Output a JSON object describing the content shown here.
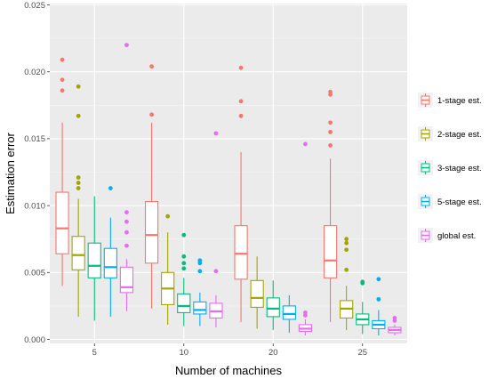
{
  "chart_data": {
    "type": "box",
    "xlabel": "Number of machines",
    "ylabel": "Estimation error",
    "ylim": [
      -0.0003,
      0.0251
    ],
    "yticks": [
      "0.000",
      "0.005",
      "0.010",
      "0.015",
      "0.020",
      "0.025"
    ],
    "ytick_values": [
      0,
      0.005,
      0.01,
      0.015,
      0.02,
      0.025
    ],
    "categories": [
      "5",
      "10",
      "20",
      "25"
    ],
    "legend_position": "right",
    "grid": true,
    "series": [
      {
        "name": "1-stage est.",
        "color": "#f8766d",
        "boxes": [
          {
            "min": 0.004,
            "q1": 0.0064,
            "median": 0.0083,
            "q3": 0.011,
            "max": 0.0162,
            "outliers": [
              0.0209,
              0.0194,
              0.0186
            ]
          },
          {
            "min": 0.0023,
            "q1": 0.0057,
            "median": 0.0078,
            "q3": 0.0103,
            "max": 0.0162,
            "outliers": [
              0.0204,
              0.0168
            ]
          },
          {
            "min": 0.0013,
            "q1": 0.0045,
            "median": 0.0064,
            "q3": 0.0085,
            "max": 0.014,
            "outliers": [
              0.0203,
              0.0178,
              0.0167
            ]
          },
          {
            "min": 0.0013,
            "q1": 0.0046,
            "median": 0.0059,
            "q3": 0.0085,
            "max": 0.0135,
            "outliers": [
              0.0185,
              0.0183,
              0.0162,
              0.0155,
              0.0145
            ]
          }
        ]
      },
      {
        "name": "2-stage est.",
        "color": "#a3a500",
        "boxes": [
          {
            "min": 0.0017,
            "q1": 0.0052,
            "median": 0.0063,
            "q3": 0.0077,
            "max": 0.0105,
            "outliers": [
              0.0189,
              0.0167,
              0.0121,
              0.0117,
              0.0113
            ]
          },
          {
            "min": 0.0011,
            "q1": 0.0026,
            "median": 0.0038,
            "q3": 0.005,
            "max": 0.008,
            "outliers": [
              0.0092
            ]
          },
          {
            "min": 0.0008,
            "q1": 0.0024,
            "median": 0.0031,
            "q3": 0.0044,
            "max": 0.0062,
            "outliers": []
          },
          {
            "min": 0.0007,
            "q1": 0.0016,
            "median": 0.0023,
            "q3": 0.0029,
            "max": 0.004,
            "outliers": [
              0.0075,
              0.0072,
              0.0067,
              0.0052
            ]
          }
        ]
      },
      {
        "name": "3-stage est.",
        "color": "#00bf7d",
        "boxes": [
          {
            "min": 0.0014,
            "q1": 0.0046,
            "median": 0.0055,
            "q3": 0.0072,
            "max": 0.0107,
            "outliers": []
          },
          {
            "min": 0.001,
            "q1": 0.002,
            "median": 0.0025,
            "q3": 0.0034,
            "max": 0.0046,
            "outliers": [
              0.0078,
              0.0062,
              0.0057,
              0.0053
            ]
          },
          {
            "min": 0.0007,
            "q1": 0.0017,
            "median": 0.0023,
            "q3": 0.0031,
            "max": 0.0044,
            "outliers": []
          },
          {
            "min": 0.0004,
            "q1": 0.0011,
            "median": 0.0015,
            "q3": 0.0019,
            "max": 0.0028,
            "outliers": [
              0.0043,
              0.0042
            ]
          }
        ]
      },
      {
        "name": "5-stage est.",
        "color": "#00b0f6",
        "boxes": [
          {
            "min": 0.0017,
            "q1": 0.0046,
            "median": 0.0054,
            "q3": 0.0068,
            "max": 0.0091,
            "outliers": [
              0.0113
            ]
          },
          {
            "min": 0.001,
            "q1": 0.0019,
            "median": 0.0022,
            "q3": 0.0028,
            "max": 0.0035,
            "outliers": [
              0.0059,
              0.0057,
              0.0051
            ]
          },
          {
            "min": 0.0005,
            "q1": 0.0015,
            "median": 0.0019,
            "q3": 0.0025,
            "max": 0.0033,
            "outliers": []
          },
          {
            "min": 0.0003,
            "q1": 0.0008,
            "median": 0.0011,
            "q3": 0.0014,
            "max": 0.0022,
            "outliers": [
              0.0045,
              0.003
            ]
          }
        ]
      },
      {
        "name": "global est.",
        "color": "#e76bf3",
        "boxes": [
          {
            "min": 0.0021,
            "q1": 0.0035,
            "median": 0.0039,
            "q3": 0.0054,
            "max": 0.006,
            "outliers": [
              0.022,
              0.0095,
              0.0088,
              0.008,
              0.007
            ]
          },
          {
            "min": 0.0009,
            "q1": 0.0016,
            "median": 0.0021,
            "q3": 0.0027,
            "max": 0.0033,
            "outliers": [
              0.0154,
              0.0051
            ]
          },
          {
            "min": 0.0003,
            "q1": 0.0006,
            "median": 0.0008,
            "q3": 0.0011,
            "max": 0.0015,
            "outliers": [
              0.0146,
              0.002,
              0.0018
            ]
          },
          {
            "min": 0.0003,
            "q1": 0.0005,
            "median": 0.0007,
            "q3": 0.0009,
            "max": 0.0011,
            "outliers": [
              0.0016,
              0.0014
            ]
          }
        ]
      }
    ]
  }
}
